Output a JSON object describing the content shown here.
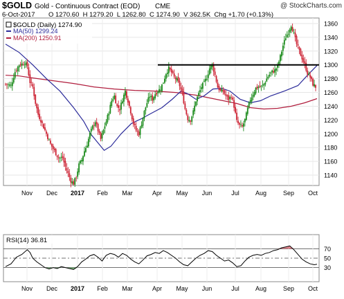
{
  "header": {
    "symbol": "$GOLD",
    "name": "Gold - Continuous Contract (EOD)",
    "exchange": "CME",
    "watermark": "@ StockCharts.com",
    "date": "6-Oct-2017",
    "ohlc_text": "O 1270.60  H 1279.20  L 1262.80  C 1274.90  V 362.5K  Chg +1.70 (+0.13%)"
  },
  "legend": {
    "main": "$GOLD (Daily) 1274.90",
    "ma50": "MA(50) 1299.24",
    "ma200": "MA(200) 1250.91"
  },
  "rsi_legend": "RSI(14) 36.81",
  "colors": {
    "up": "#1a8a1a",
    "down": "#cc2233",
    "ma50": "#2b2b9a",
    "ma200": "#b01c3c",
    "resistance": "#000000",
    "rsi": "#000000",
    "overbought_fill": "#cc2233",
    "oversold_fill": "#1a8a1a"
  },
  "chart_data": [
    {
      "type": "candlestick",
      "title": "$GOLD (Daily) 1274.90",
      "x_labels": [
        "Nov",
        "Dec",
        "2017",
        "Feb",
        "Mar",
        "Apr",
        "May",
        "Jun",
        "Jul",
        "Aug",
        "Sep",
        "Oct"
      ],
      "y_ticks": [
        1140,
        1160,
        1180,
        1200,
        1220,
        1240,
        1260,
        1280,
        1300,
        1320,
        1340,
        1360
      ],
      "ylim": [
        1125,
        1368
      ],
      "grid": true,
      "resistance_level": 1300,
      "close_path": [
        [
          0,
          1272
        ],
        [
          8,
          1270
        ],
        [
          14,
          1290
        ],
        [
          20,
          1300
        ],
        [
          28,
          1303
        ],
        [
          32,
          1298
        ],
        [
          36,
          1275
        ],
        [
          40,
          1268
        ],
        [
          44,
          1245
        ],
        [
          48,
          1228
        ],
        [
          54,
          1215
        ],
        [
          60,
          1200
        ],
        [
          66,
          1185
        ],
        [
          72,
          1175
        ],
        [
          78,
          1165
        ],
        [
          84,
          1165
        ],
        [
          88,
          1152
        ],
        [
          92,
          1142
        ],
        [
          96,
          1132
        ],
        [
          100,
          1128
        ],
        [
          104,
          1138
        ],
        [
          108,
          1155
        ],
        [
          112,
          1162
        ],
        [
          116,
          1175
        ],
        [
          120,
          1185
        ],
        [
          124,
          1200
        ],
        [
          128,
          1210
        ],
        [
          132,
          1218
        ],
        [
          136,
          1205
        ],
        [
          140,
          1192
        ],
        [
          144,
          1205
        ],
        [
          148,
          1218
        ],
        [
          152,
          1232
        ],
        [
          156,
          1248
        ],
        [
          160,
          1255
        ],
        [
          164,
          1240
        ],
        [
          168,
          1236
        ],
        [
          172,
          1250
        ],
        [
          176,
          1262
        ],
        [
          180,
          1248
        ],
        [
          184,
          1232
        ],
        [
          188,
          1215
        ],
        [
          192,
          1205
        ],
        [
          196,
          1200
        ],
        [
          200,
          1215
        ],
        [
          204,
          1232
        ],
        [
          208,
          1245
        ],
        [
          212,
          1255
        ],
        [
          216,
          1250
        ],
        [
          220,
          1258
        ],
        [
          224,
          1262
        ],
        [
          228,
          1266
        ],
        [
          232,
          1275
        ],
        [
          236,
          1288
        ],
        [
          240,
          1295
        ],
        [
          244,
          1289
        ],
        [
          248,
          1282
        ],
        [
          252,
          1278
        ],
        [
          256,
          1270
        ],
        [
          260,
          1258
        ],
        [
          264,
          1236
        ],
        [
          268,
          1222
        ],
        [
          272,
          1220
        ],
        [
          276,
          1232
        ],
        [
          280,
          1248
        ],
        [
          284,
          1258
        ],
        [
          288,
          1268
        ],
        [
          292,
          1274
        ],
        [
          296,
          1282
        ],
        [
          300,
          1295
        ],
        [
          304,
          1300
        ],
        [
          308,
          1285
        ],
        [
          312,
          1268
        ],
        [
          316,
          1262
        ],
        [
          320,
          1262
        ],
        [
          324,
          1255
        ],
        [
          328,
          1250
        ],
        [
          332,
          1255
        ],
        [
          336,
          1240
        ],
        [
          340,
          1218
        ],
        [
          344,
          1212
        ],
        [
          348,
          1210
        ],
        [
          352,
          1220
        ],
        [
          356,
          1236
        ],
        [
          360,
          1250
        ],
        [
          364,
          1258
        ],
        [
          368,
          1266
        ],
        [
          372,
          1268
        ],
        [
          376,
          1268
        ],
        [
          380,
          1272
        ],
        [
          384,
          1280
        ],
        [
          388,
          1286
        ],
        [
          392,
          1290
        ],
        [
          396,
          1292
        ],
        [
          400,
          1298
        ],
        [
          404,
          1312
        ],
        [
          408,
          1328
        ],
        [
          412,
          1340
        ],
        [
          416,
          1348
        ],
        [
          420,
          1358
        ],
        [
          424,
          1345
        ],
        [
          428,
          1330
        ],
        [
          432,
          1320
        ],
        [
          436,
          1310
        ],
        [
          440,
          1300
        ],
        [
          444,
          1288
        ],
        [
          448,
          1282
        ],
        [
          452,
          1272
        ],
        [
          456,
          1268
        ],
        [
          458,
          1275
        ]
      ],
      "ma50_path": [
        [
          0,
          1330
        ],
        [
          20,
          1318
        ],
        [
          40,
          1300
        ],
        [
          60,
          1280
        ],
        [
          80,
          1262
        ],
        [
          100,
          1238
        ],
        [
          115,
          1218
        ],
        [
          125,
          1200
        ],
        [
          135,
          1188
        ],
        [
          145,
          1176
        ],
        [
          155,
          1182
        ],
        [
          170,
          1200
        ],
        [
          185,
          1215
        ],
        [
          200,
          1222
        ],
        [
          215,
          1230
        ],
        [
          230,
          1238
        ],
        [
          245,
          1250
        ],
        [
          258,
          1262
        ],
        [
          268,
          1258
        ],
        [
          280,
          1250
        ],
        [
          292,
          1255
        ],
        [
          305,
          1265
        ],
        [
          318,
          1266
        ],
        [
          330,
          1262
        ],
        [
          345,
          1250
        ],
        [
          360,
          1245
        ],
        [
          375,
          1248
        ],
        [
          390,
          1255
        ],
        [
          410,
          1262
        ],
        [
          430,
          1270
        ],
        [
          445,
          1286
        ],
        [
          458,
          1299
        ]
      ],
      "ma200_path": [
        [
          0,
          1285
        ],
        [
          20,
          1284
        ],
        [
          40,
          1281
        ],
        [
          70,
          1277
        ],
        [
          100,
          1273
        ],
        [
          130,
          1268
        ],
        [
          160,
          1265
        ],
        [
          190,
          1263
        ],
        [
          220,
          1262
        ],
        [
          250,
          1260
        ],
        [
          280,
          1256
        ],
        [
          310,
          1250
        ],
        [
          340,
          1244
        ],
        [
          360,
          1238
        ],
        [
          380,
          1236
        ],
        [
          400,
          1237
        ],
        [
          420,
          1240
        ],
        [
          440,
          1245
        ],
        [
          458,
          1251
        ]
      ]
    },
    {
      "type": "line",
      "title": "RSI(14) 36.81",
      "x_labels": [
        "Nov",
        "Dec",
        "2017",
        "Feb",
        "Mar",
        "Apr",
        "May",
        "Jun",
        "Jul",
        "Aug",
        "Sep",
        "Oct"
      ],
      "y_ticks": [
        30,
        50,
        70
      ],
      "ylim": [
        0,
        100
      ],
      "reference_levels": [
        30,
        50,
        70
      ],
      "rsi_path": [
        [
          0,
          32
        ],
        [
          8,
          38
        ],
        [
          16,
          52
        ],
        [
          24,
          58
        ],
        [
          32,
          68
        ],
        [
          36,
          62
        ],
        [
          40,
          50
        ],
        [
          46,
          42
        ],
        [
          52,
          36
        ],
        [
          58,
          30
        ],
        [
          64,
          27
        ],
        [
          70,
          30
        ],
        [
          76,
          28
        ],
        [
          82,
          32
        ],
        [
          88,
          30
        ],
        [
          94,
          28
        ],
        [
          100,
          26
        ],
        [
          106,
          32
        ],
        [
          112,
          42
        ],
        [
          118,
          48
        ],
        [
          124,
          55
        ],
        [
          130,
          58
        ],
        [
          136,
          52
        ],
        [
          142,
          44
        ],
        [
          148,
          56
        ],
        [
          154,
          60
        ],
        [
          160,
          58
        ],
        [
          166,
          52
        ],
        [
          172,
          60
        ],
        [
          178,
          56
        ],
        [
          184,
          48
        ],
        [
          190,
          42
        ],
        [
          196,
          38
        ],
        [
          202,
          46
        ],
        [
          208,
          55
        ],
        [
          214,
          58
        ],
        [
          220,
          62
        ],
        [
          226,
          60
        ],
        [
          232,
          66
        ],
        [
          238,
          62
        ],
        [
          244,
          56
        ],
        [
          250,
          50
        ],
        [
          256,
          42
        ],
        [
          262,
          36
        ],
        [
          268,
          34
        ],
        [
          274,
          42
        ],
        [
          280,
          50
        ],
        [
          286,
          56
        ],
        [
          292,
          60
        ],
        [
          298,
          66
        ],
        [
          304,
          64
        ],
        [
          310,
          56
        ],
        [
          316,
          50
        ],
        [
          322,
          44
        ],
        [
          328,
          46
        ],
        [
          334,
          40
        ],
        [
          340,
          32
        ],
        [
          346,
          34
        ],
        [
          352,
          44
        ],
        [
          358,
          52
        ],
        [
          364,
          56
        ],
        [
          370,
          58
        ],
        [
          376,
          56
        ],
        [
          382,
          60
        ],
        [
          388,
          62
        ],
        [
          394,
          66
        ],
        [
          400,
          68
        ],
        [
          406,
          72
        ],
        [
          412,
          74
        ],
        [
          418,
          76
        ],
        [
          424,
          68
        ],
        [
          430,
          58
        ],
        [
          436,
          48
        ],
        [
          442,
          42
        ],
        [
          448,
          38
        ],
        [
          454,
          36
        ],
        [
          458,
          37
        ]
      ]
    }
  ]
}
